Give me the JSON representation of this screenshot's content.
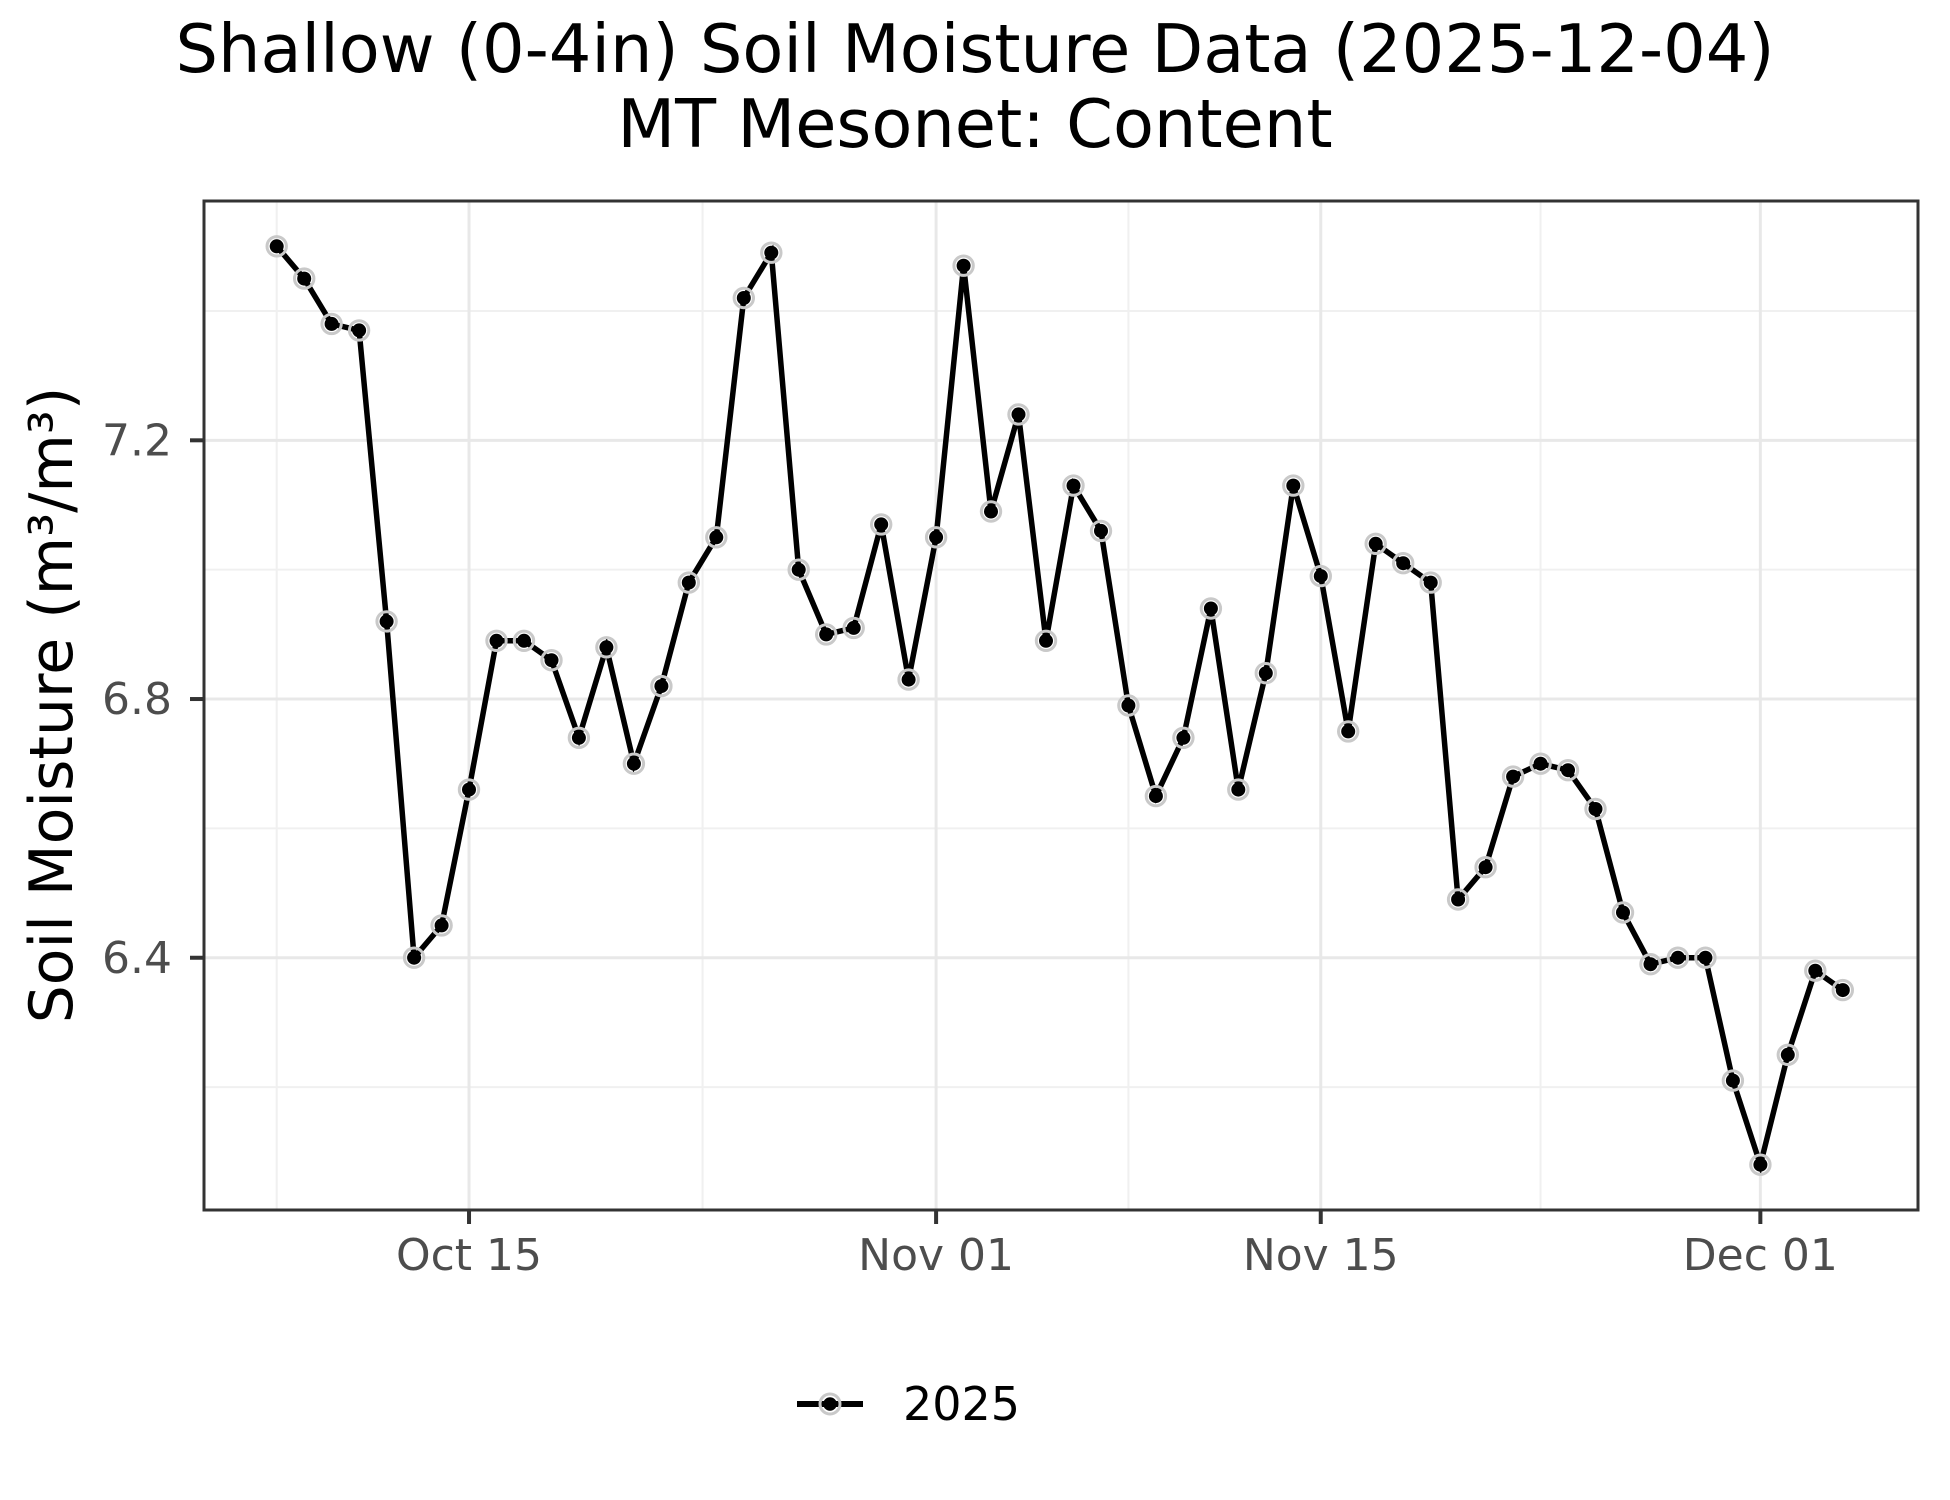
{
  "figure": {
    "title_line1": "Shallow (0-4in) Soil Moisture Data (2025-12-04)",
    "title_line2": "MT Mesonet: Content",
    "y_axis_label": "Soil Moisture (m³/m³)"
  },
  "legend": {
    "series_label": "2025"
  },
  "colors": {
    "background": "#ffffff",
    "line": "#000000",
    "point": "#000000",
    "point_halo": "#c9c9c9",
    "grid_major": "#e8e8e8",
    "grid_minor": "#f0f0f0",
    "panel_border": "#333333",
    "tick_mark": "#333333",
    "tick_label": "#4d4d4d",
    "title_text": "#000000"
  },
  "chart_data": {
    "type": "line",
    "title": "Shallow (0-4in) Soil Moisture Data (2025-12-04) — MT Mesonet: Content",
    "xlabel": "",
    "ylabel": "Soil Moisture (m³/m³)",
    "ylim": [
      6.01,
      7.57
    ],
    "grid": true,
    "legend_position": "bottom",
    "x_major_ticks": [
      {
        "label": "Oct 15",
        "day_index": 7
      },
      {
        "label": "Nov 01",
        "day_index": 24
      },
      {
        "label": "Nov 15",
        "day_index": 38
      },
      {
        "label": "Dec 01",
        "day_index": 54
      }
    ],
    "x_minor_day_indices": [
      0,
      15.5,
      31,
      46
    ],
    "y_major_ticks": [
      {
        "label": "6.4",
        "value": 6.4
      },
      {
        "label": "6.8",
        "value": 6.8
      },
      {
        "label": "7.2",
        "value": 7.2
      }
    ],
    "y_minor_values": [
      6.2,
      6.6,
      7.0,
      7.4
    ],
    "series": [
      {
        "name": "2025",
        "dates": [
          "2025-10-08",
          "2025-10-09",
          "2025-10-10",
          "2025-10-11",
          "2025-10-12",
          "2025-10-13",
          "2025-10-14",
          "2025-10-15",
          "2025-10-16",
          "2025-10-17",
          "2025-10-18",
          "2025-10-19",
          "2025-10-20",
          "2025-10-21",
          "2025-10-22",
          "2025-10-23",
          "2025-10-24",
          "2025-10-25",
          "2025-10-26",
          "2025-10-27",
          "2025-10-28",
          "2025-10-29",
          "2025-10-30",
          "2025-10-31",
          "2025-11-01",
          "2025-11-02",
          "2025-11-03",
          "2025-11-04",
          "2025-11-05",
          "2025-11-06",
          "2025-11-07",
          "2025-11-08",
          "2025-11-09",
          "2025-11-10",
          "2025-11-11",
          "2025-11-12",
          "2025-11-13",
          "2025-11-14",
          "2025-11-15",
          "2025-11-16",
          "2025-11-17",
          "2025-11-18",
          "2025-11-19",
          "2025-11-20",
          "2025-11-21",
          "2025-11-22",
          "2025-11-23",
          "2025-11-24",
          "2025-11-25",
          "2025-11-26",
          "2025-11-27",
          "2025-11-28",
          "2025-11-29",
          "2025-11-30",
          "2025-12-01",
          "2025-12-02",
          "2025-12-03",
          "2025-12-04"
        ],
        "values": [
          7.5,
          7.45,
          7.38,
          7.37,
          6.92,
          6.4,
          6.45,
          6.66,
          6.89,
          6.89,
          6.86,
          6.74,
          6.88,
          6.7,
          6.82,
          6.98,
          7.05,
          7.42,
          7.49,
          7.0,
          6.9,
          6.91,
          7.07,
          6.83,
          7.05,
          7.47,
          7.09,
          7.24,
          6.89,
          7.13,
          7.06,
          6.79,
          6.65,
          6.74,
          6.94,
          6.66,
          6.84,
          7.13,
          6.99,
          6.75,
          7.04,
          7.01,
          6.98,
          6.49,
          6.54,
          6.68,
          6.7,
          6.69,
          6.63,
          6.47,
          6.39,
          6.4,
          6.4,
          6.21,
          6.08,
          6.25,
          6.38,
          6.35
        ]
      }
    ]
  }
}
